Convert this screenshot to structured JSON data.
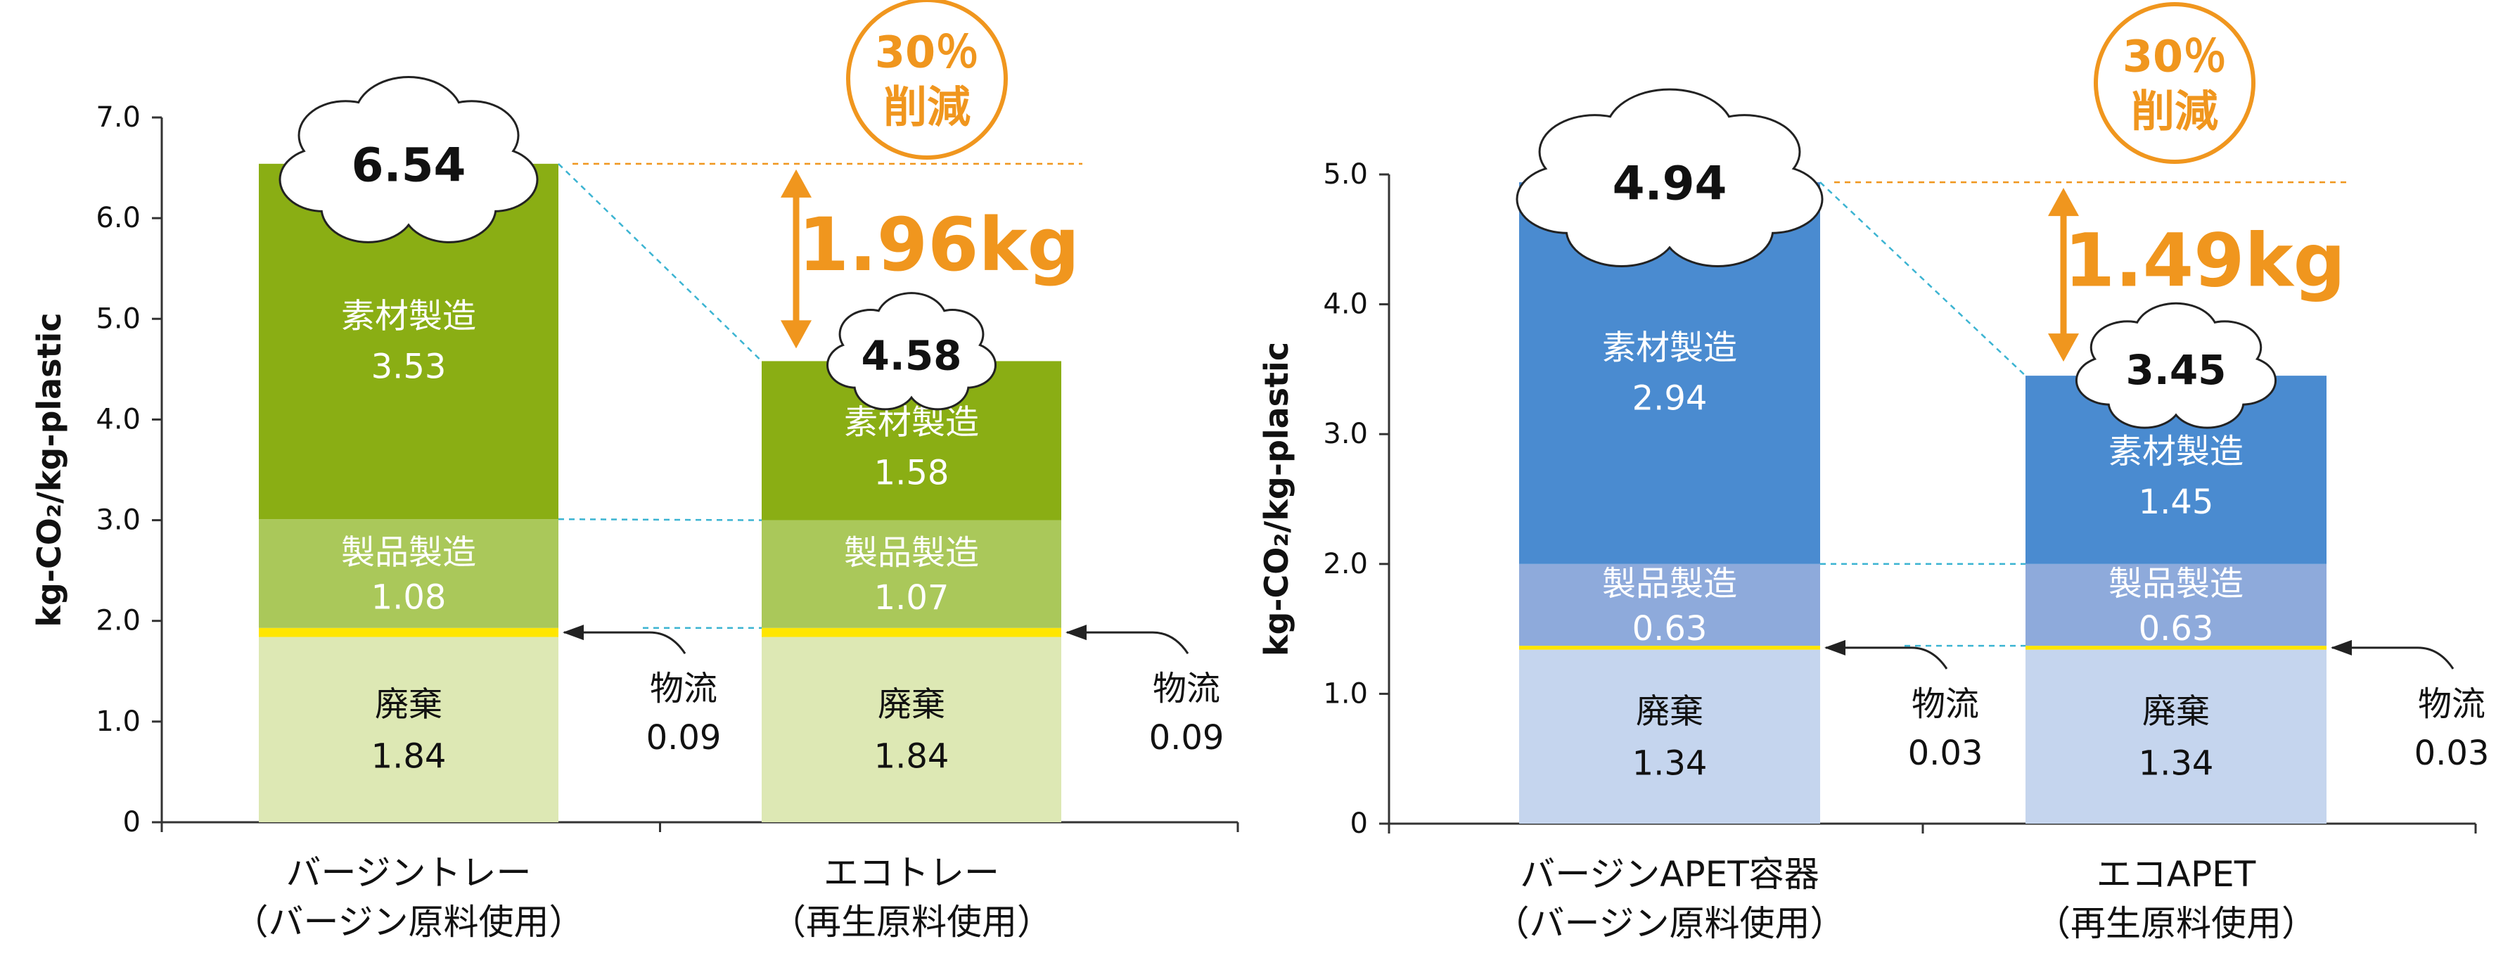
{
  "chart_data": [
    {
      "type": "bar",
      "stacked": true,
      "ylabel": "kg-CO₂/kg-plastic",
      "ylim": [
        0,
        7
      ],
      "yticks": [
        "0",
        "1.0",
        "2.0",
        "3.0",
        "4.0",
        "5.0",
        "6.0",
        "7.0"
      ],
      "categories": [
        {
          "line1": "バージントレー",
          "line2": "（バージン原料使用）"
        },
        {
          "line1": "エコトレー",
          "line2": "（再生原料使用）"
        }
      ],
      "totals": [
        "6.54",
        "4.58"
      ],
      "series": [
        {
          "name": "廃棄",
          "values": [
            1.84,
            1.84
          ],
          "labels": [
            "1.84",
            "1.84"
          ],
          "color": "#dde8b4"
        },
        {
          "name": "物流",
          "values": [
            0.09,
            0.09
          ],
          "labels": [
            "0.09",
            "0.09"
          ],
          "color": "#ffe600"
        },
        {
          "name": "製品製造",
          "values": [
            1.08,
            1.07
          ],
          "labels": [
            "1.08",
            "1.07"
          ],
          "color": "#aac85a"
        },
        {
          "name": "素材製造",
          "values": [
            3.53,
            1.58
          ],
          "labels": [
            "3.53",
            "1.58"
          ],
          "color": "#8aae14"
        }
      ],
      "reduction": {
        "amount": "1.96kg",
        "percent": "30％",
        "word": "削減"
      }
    },
    {
      "type": "bar",
      "stacked": true,
      "ylabel": "kg-CO₂/kg-plastic",
      "ylim": [
        0,
        5
      ],
      "yticks": [
        "0",
        "1.0",
        "2.0",
        "3.0",
        "4.0",
        "5.0"
      ],
      "categories": [
        {
          "line1": "バージンAPET容器",
          "line2": "（バージン原料使用）"
        },
        {
          "line1": "エコAPET",
          "line2": "（再生原料使用）"
        }
      ],
      "totals": [
        "4.94",
        "3.45"
      ],
      "series": [
        {
          "name": "廃棄",
          "values": [
            1.34,
            1.34
          ],
          "labels": [
            "1.34",
            "1.34"
          ],
          "color": "#c5d5ee"
        },
        {
          "name": "物流",
          "values": [
            0.03,
            0.03
          ],
          "labels": [
            "0.03",
            "0.03"
          ],
          "color": "#ffe600"
        },
        {
          "name": "製品製造",
          "values": [
            0.63,
            0.63
          ],
          "labels": [
            "0.63",
            "0.63"
          ],
          "color": "#8eaadb"
        },
        {
          "name": "素材製造",
          "values": [
            2.94,
            1.45
          ],
          "labels": [
            "2.94",
            "1.45"
          ],
          "color": "#4a8bd0"
        }
      ],
      "reduction": {
        "amount": "1.49kg",
        "percent": "30％",
        "word": "削減"
      }
    }
  ],
  "colors": {
    "accent": "#f0961e",
    "guide": "#3cb4d2",
    "text": "#111111"
  }
}
